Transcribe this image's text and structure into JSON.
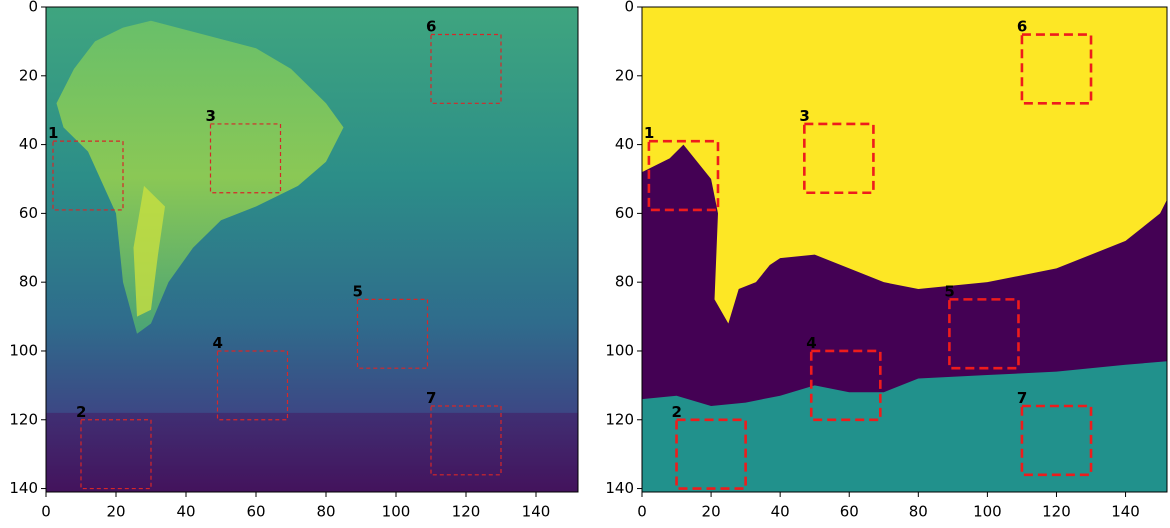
{
  "chart_data": [
    {
      "type": "image",
      "xlim": [
        0,
        152
      ],
      "ylim": [
        0,
        141
      ],
      "xticks": [
        0,
        20,
        40,
        60,
        80,
        100,
        120,
        140
      ],
      "yticks": [
        0,
        20,
        40,
        60,
        80,
        100,
        120,
        140
      ],
      "box_color": "#d62728",
      "boxes": [
        {
          "label": "1",
          "x": [
            2,
            22
          ],
          "y": [
            39,
            59
          ]
        },
        {
          "label": "2",
          "x": [
            10,
            30
          ],
          "y": [
            120,
            140
          ]
        },
        {
          "label": "3",
          "x": [
            47,
            67
          ],
          "y": [
            34,
            54
          ]
        },
        {
          "label": "4",
          "x": [
            49,
            69
          ],
          "y": [
            100,
            120
          ]
        },
        {
          "label": "5",
          "x": [
            89,
            109
          ],
          "y": [
            85,
            105
          ]
        },
        {
          "label": "6",
          "x": [
            110,
            130
          ],
          "y": [
            8,
            28
          ]
        },
        {
          "label": "7",
          "x": [
            110,
            130
          ],
          "y": [
            116,
            136
          ]
        }
      ]
    },
    {
      "type": "image",
      "xlim": [
        0,
        152
      ],
      "ylim": [
        0,
        141
      ],
      "xticks": [
        0,
        20,
        40,
        60,
        80,
        100,
        120,
        140
      ],
      "yticks": [
        0,
        20,
        40,
        60,
        80,
        100,
        120,
        140
      ],
      "box_color": "#ee1c1c",
      "boxes": [
        {
          "label": "1",
          "x": [
            2,
            22
          ],
          "y": [
            39,
            59
          ]
        },
        {
          "label": "2",
          "x": [
            10,
            30
          ],
          "y": [
            120,
            140
          ]
        },
        {
          "label": "3",
          "x": [
            47,
            67
          ],
          "y": [
            34,
            54
          ]
        },
        {
          "label": "4",
          "x": [
            49,
            69
          ],
          "y": [
            100,
            120
          ]
        },
        {
          "label": "5",
          "x": [
            89,
            109
          ],
          "y": [
            85,
            105
          ]
        },
        {
          "label": "6",
          "x": [
            110,
            130
          ],
          "y": [
            8,
            28
          ]
        },
        {
          "label": "7",
          "x": [
            110,
            130
          ],
          "y": [
            116,
            136
          ]
        }
      ]
    }
  ]
}
